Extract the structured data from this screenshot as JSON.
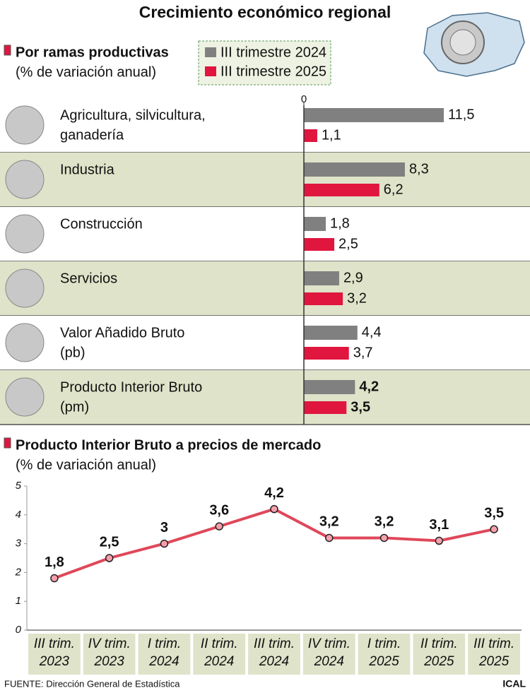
{
  "title": "Crecimiento económico regional",
  "source": "FUENTE: Dirección General de Estadística",
  "credit": "ICAL",
  "chart_data": [
    {
      "type": "hbar",
      "title": "Por ramas productivas",
      "subtitle": "(% de variación anual)",
      "categories": [
        [
          "Agricultura, silvicultura,",
          "ganadería"
        ],
        [
          "Industria"
        ],
        [
          "Construcción"
        ],
        [
          "Servicios"
        ],
        [
          "Valor Añadido Bruto",
          "(pb)"
        ],
        [
          "Producto Interior Bruto",
          "(pm)"
        ]
      ],
      "series": [
        {
          "name": "III trimestre 2024",
          "color": "#808080",
          "values": [
            11.5,
            8.3,
            1.8,
            2.9,
            4.4,
            4.2
          ],
          "value_labels": [
            "11,5",
            "8,3",
            "1,8",
            "2,9",
            "4,4",
            "4,2"
          ]
        },
        {
          "name": "III trimestre 2025",
          "color": "#e0163f",
          "values": [
            1.1,
            6.2,
            2.5,
            3.2,
            3.7,
            3.5
          ],
          "value_labels": [
            "1,1",
            "6,2",
            "2,5",
            "3,2",
            "3,7",
            "3,5"
          ]
        }
      ],
      "xlim": [
        0,
        18
      ],
      "xticks": [
        0
      ]
    },
    {
      "type": "line",
      "title": "Producto Interior Bruto a precios de mercado",
      "subtitle": "(% de variación anual)",
      "categories": [
        [
          "III trim.",
          "2023"
        ],
        [
          "IV trim.",
          "2023"
        ],
        [
          "I trim.",
          "2024"
        ],
        [
          "II trim.",
          "2024"
        ],
        [
          "III trim.",
          "2024"
        ],
        [
          "IV trim.",
          "2024"
        ],
        [
          "I trim.",
          "2025"
        ],
        [
          "II trim.",
          "2025"
        ],
        [
          "III trim.",
          "2025"
        ]
      ],
      "values": [
        1.8,
        2.5,
        3,
        3.6,
        4.2,
        3.2,
        3.2,
        3.1,
        3.5
      ],
      "value_labels": [
        "1,8",
        "2,5",
        "3",
        "3,6",
        "4,2",
        "3,2",
        "3,2",
        "3,1",
        "3,5"
      ],
      "color": "#e0475a",
      "ylim": [
        0,
        5
      ],
      "yticks": [
        0,
        1,
        2,
        3,
        4,
        5
      ],
      "grid": false
    }
  ]
}
